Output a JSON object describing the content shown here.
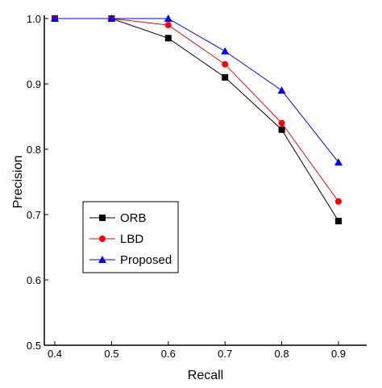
{
  "chart_data": {
    "type": "line",
    "title": "",
    "xlabel": "Recall",
    "ylabel": "Precision",
    "xlim": [
      0.4,
      0.9
    ],
    "ylim": [
      0.5,
      1.0
    ],
    "x_ticks": [
      "0.4",
      "0.5",
      "0.6",
      "0.7",
      "0.8",
      "0.9"
    ],
    "y_ticks": [
      "0.5",
      "0.6",
      "0.7",
      "0.8",
      "0.9",
      "1.0"
    ],
    "x": [
      0.4,
      0.5,
      0.6,
      0.7,
      0.8,
      0.9
    ],
    "grid": false,
    "legend_position": "lower-left",
    "series": [
      {
        "name": "ORB",
        "values": [
          1.0,
          1.0,
          0.97,
          0.91,
          0.83,
          0.69
        ],
        "color": "#000000",
        "marker": "square"
      },
      {
        "name": "LBD",
        "values": [
          1.0,
          1.0,
          0.99,
          0.93,
          0.84,
          0.72
        ],
        "color": "#ff0000",
        "marker": "circle"
      },
      {
        "name": "Proposed",
        "values": [
          1.0,
          1.0,
          1.0,
          0.95,
          0.89,
          0.78
        ],
        "color": "#0000ff",
        "marker": "triangle"
      }
    ]
  }
}
